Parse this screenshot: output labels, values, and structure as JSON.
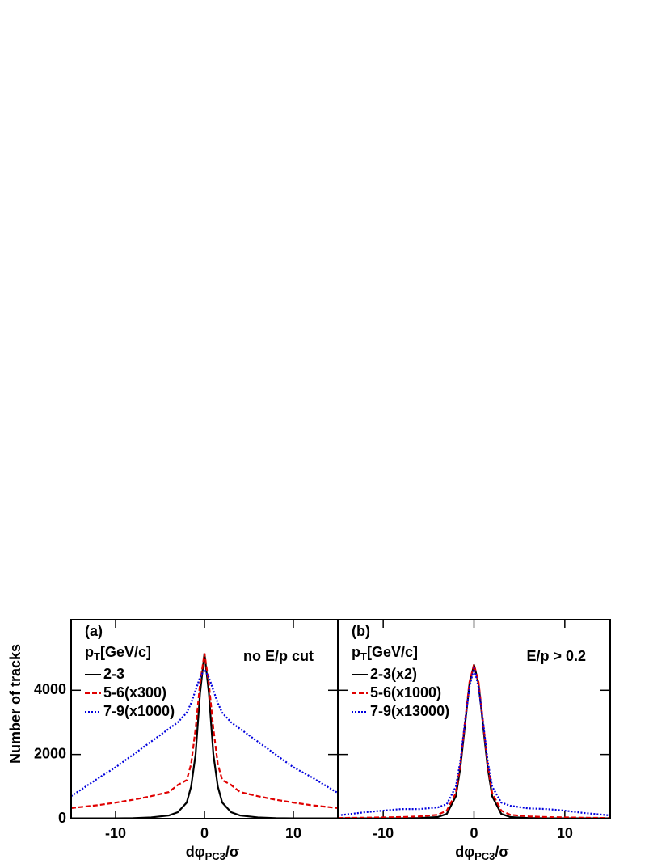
{
  "chart_data": [
    {
      "type": "line",
      "panel_label": "(a)",
      "annotation": "no E/p cut",
      "y_label": "Number of tracks",
      "x_label": {
        "main": "dφ",
        "sub": "PC3",
        "rest": "/σ"
      },
      "legend_title": {
        "main": "p",
        "sub": "T",
        "rest": "[GeV/c]"
      },
      "x": [
        -15,
        -12,
        -10,
        -8,
        -6,
        -4,
        -3,
        -2,
        -1.5,
        -1,
        -0.5,
        0,
        0.5,
        1,
        1.5,
        2,
        3,
        4,
        6,
        8,
        10,
        12,
        15
      ],
      "series": [
        {
          "name": "2-3",
          "color": "#000000",
          "dash": "solid",
          "values": [
            10,
            10,
            10,
            15,
            40,
            100,
            200,
            500,
            1000,
            2000,
            3900,
            5150,
            3900,
            2000,
            1000,
            500,
            200,
            100,
            40,
            15,
            10,
            10,
            10
          ]
        },
        {
          "name": "5-6(x300)",
          "color": "#e00000",
          "dash": "dashed",
          "values": [
            330,
            420,
            500,
            590,
            700,
            830,
            1050,
            1200,
            1700,
            2800,
            4200,
            5150,
            4200,
            2800,
            1700,
            1200,
            1050,
            830,
            700,
            590,
            500,
            420,
            330
          ]
        },
        {
          "name": "7-9(x1000)",
          "color": "#0000dd",
          "dash": "dotted",
          "values": [
            700,
            1250,
            1600,
            2000,
            2400,
            2800,
            3000,
            3300,
            3600,
            4000,
            4400,
            4650,
            4400,
            4000,
            3600,
            3300,
            3000,
            2800,
            2400,
            2000,
            1600,
            1300,
            800
          ]
        }
      ],
      "xlim": [
        -15,
        15
      ],
      "ylim": [
        0,
        6200
      ],
      "xticks": [
        -10,
        0,
        10
      ],
      "yticks": [
        0,
        2000,
        4000
      ]
    },
    {
      "type": "line",
      "panel_label": "(b)",
      "annotation": "E/p > 0.2",
      "x_label": {
        "main": "dφ",
        "sub": "PC3",
        "rest": "/σ"
      },
      "legend_title": {
        "main": "p",
        "sub": "T",
        "rest": "[GeV/c]"
      },
      "x": [
        -15,
        -12,
        -10,
        -8,
        -6,
        -4,
        -3,
        -2,
        -1.5,
        -1,
        -0.5,
        0,
        0.5,
        1,
        1.5,
        2,
        3,
        4,
        6,
        8,
        10,
        12,
        15
      ],
      "series": [
        {
          "name": "2-3(x2)",
          "color": "#000000",
          "dash": "solid",
          "values": [
            10,
            10,
            10,
            10,
            20,
            50,
            150,
            700,
            1600,
            2900,
            4200,
            4800,
            4200,
            2900,
            1600,
            700,
            150,
            50,
            20,
            10,
            10,
            10,
            10
          ]
        },
        {
          "name": "5-6(x1000)",
          "color": "#e00000",
          "dash": "dashed",
          "values": [
            20,
            30,
            40,
            50,
            70,
            120,
            250,
            800,
            1700,
            3000,
            4250,
            4800,
            4250,
            3000,
            1700,
            800,
            250,
            120,
            70,
            50,
            40,
            30,
            20
          ]
        },
        {
          "name": "7-9(x13000)",
          "color": "#0000dd",
          "dash": "dotted",
          "values": [
            100,
            200,
            250,
            300,
            300,
            350,
            450,
            1000,
            1800,
            3000,
            4100,
            4700,
            4100,
            3000,
            1800,
            1000,
            500,
            400,
            320,
            300,
            250,
            180,
            100
          ]
        }
      ],
      "xlim": [
        -15,
        15
      ],
      "ylim": [
        0,
        6200
      ],
      "xticks": [
        -10,
        0,
        10
      ],
      "yticks": [
        0,
        2000,
        4000
      ]
    }
  ]
}
